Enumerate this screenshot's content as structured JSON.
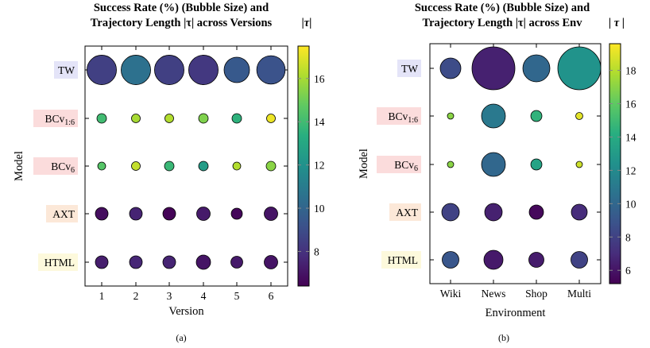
{
  "captions": [
    "(a)",
    "(b)"
  ],
  "model_label_colors": {
    "TW": "#e4e4f8",
    "BC": "#fbdcdc",
    "AXT": "#fce8d8",
    "HTML": "#fdf9dc"
  },
  "chart_data": [
    {
      "type": "scatter",
      "subtype": "bubble",
      "title_lines": [
        "Success Rate (%) (Bubble Size) and",
        "Trajectory Length |τ| across Versions"
      ],
      "colorbar_label": "|τ|",
      "xlabel": "Version",
      "ylabel": "Model",
      "categories": [
        "1",
        "2",
        "3",
        "4",
        "5",
        "6"
      ],
      "models": [
        {
          "name": "TW",
          "base": "TW",
          "sub": "",
          "group": "TW"
        },
        {
          "name": "BCv1:6",
          "base": "BCv",
          "sub": "1:6",
          "group": "BC"
        },
        {
          "name": "BCv6",
          "base": "BCv",
          "sub": "6",
          "group": "BC"
        },
        {
          "name": "AXT",
          "base": "AXT",
          "sub": "",
          "group": "AXT"
        },
        {
          "name": "HTML",
          "base": "HTML",
          "sub": "",
          "group": "HTML"
        }
      ],
      "success_rate": [
        [
          43,
          43,
          43,
          43,
          32,
          40
        ],
        [
          4.5,
          3.8,
          3.8,
          4.5,
          4.5,
          3.8
        ],
        [
          3.1,
          3.8,
          4.5,
          4.5,
          3.1,
          4.5
        ],
        [
          8,
          8,
          8,
          9,
          6.1,
          9
        ],
        [
          8,
          8,
          8,
          10.1,
          7,
          9
        ]
      ],
      "tau": [
        [
          8.5,
          10.5,
          8.5,
          8.2,
          9.5,
          9.2
        ],
        [
          14,
          16,
          16.2,
          15.3,
          13.5,
          17.2
        ],
        [
          14.5,
          16.5,
          13.8,
          12.5,
          16.2,
          15.5
        ],
        [
          6.8,
          7.5,
          6.5,
          7.2,
          6.6,
          7.0
        ],
        [
          7.3,
          7.6,
          7.5,
          7.0,
          7.2,
          7.0
        ]
      ],
      "colorbar_range": [
        6.4,
        17.5
      ],
      "colorbar_ticks": [
        "8",
        "10",
        "12",
        "14",
        "16"
      ],
      "colormap": "viridis"
    },
    {
      "type": "scatter",
      "subtype": "bubble",
      "title_lines": [
        "Success Rate (%) (Bubble Size) and",
        "Trajectory Length |τ| across Env"
      ],
      "colorbar_label": "| τ |",
      "xlabel": "Environment",
      "ylabel": "Model",
      "categories": [
        "Wiki",
        "News",
        "Shop",
        "Multi"
      ],
      "models": [
        {
          "name": "TW",
          "base": "TW",
          "sub": "",
          "group": "TW"
        },
        {
          "name": "BCv1:6",
          "base": "BCv",
          "sub": "1:6",
          "group": "BC"
        },
        {
          "name": "BCv6",
          "base": "BCv",
          "sub": "6",
          "group": "BC"
        },
        {
          "name": "AXT",
          "base": "AXT",
          "sub": "",
          "group": "AXT"
        },
        {
          "name": "HTML",
          "base": "HTML",
          "sub": "",
          "group": "HTML"
        }
      ],
      "success_rate": [
        [
          21.1,
          91.1,
          36.1,
          91.1
        ],
        [
          2,
          28.1,
          6.1,
          2.5
        ],
        [
          2,
          28.1,
          6.1,
          2
        ],
        [
          15.1,
          15.1,
          10.1,
          12.5
        ],
        [
          13.8,
          18,
          11.3,
          13.8
        ]
      ],
      "tau": [
        [
          8.5,
          6.5,
          10,
          12.5
        ],
        [
          17,
          11,
          14.5,
          19
        ],
        [
          17,
          10,
          13.5,
          18.5
        ],
        [
          8,
          6.5,
          5.5,
          7
        ],
        [
          9,
          6.2,
          6.3,
          8
        ]
      ],
      "colorbar_range": [
        5.2,
        19.6
      ],
      "colorbar_ticks": [
        "6",
        "8",
        "10",
        "12",
        "14",
        "16",
        "18"
      ],
      "colormap": "viridis"
    }
  ]
}
